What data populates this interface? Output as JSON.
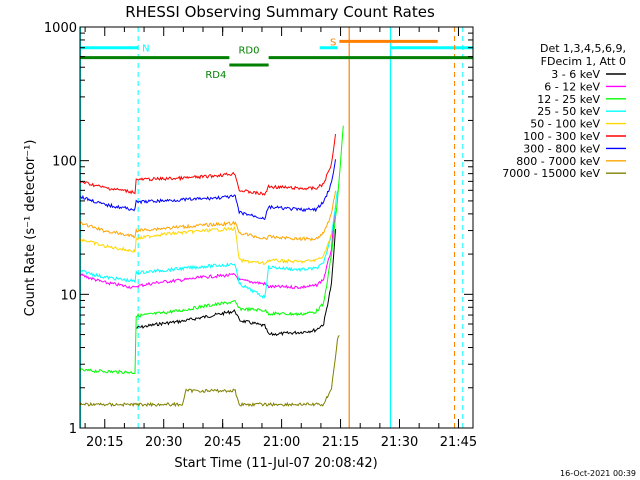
{
  "chart_data": {
    "type": "line",
    "title": "RHESSI Observing Summary Count Rates",
    "xlabel": "Start Time (11-Jul-07 20:08:42)",
    "ylabel": "Count Rate (s⁻¹ detector⁻¹)",
    "x_unit": "minutes after 20:08:42",
    "xlim": [
      0,
      100
    ],
    "x_ticks": [
      {
        "label": "20:15",
        "x": 6.3
      },
      {
        "label": "20:30",
        "x": 21.3
      },
      {
        "label": "20:45",
        "x": 36.3
      },
      {
        "label": "21:00",
        "x": 51.3
      },
      {
        "label": "21:15",
        "x": 66.3
      },
      {
        "label": "21:30",
        "x": 81.3
      },
      {
        "label": "21:45",
        "x": 96.3
      }
    ],
    "y_scale": "log",
    "ylim": [
      1,
      1000
    ],
    "y_ticks": [
      "1",
      "10",
      "100",
      "1000"
    ],
    "legend_header": [
      "Det 1,3,4,5,6,9,",
      "FDecim 1, Att 0"
    ],
    "legend_position": "right",
    "series": [
      {
        "name": "3 - 6 keV",
        "color": "#000000",
        "points": [
          [
            14.3,
            5.6
          ],
          [
            20,
            6
          ],
          [
            26,
            6.3
          ],
          [
            32,
            6.8
          ],
          [
            39.5,
            7.5
          ],
          [
            40.5,
            6.4
          ],
          [
            47,
            5.8
          ],
          [
            48,
            5
          ],
          [
            56,
            5.2
          ],
          [
            60,
            5.4
          ],
          [
            62,
            6
          ],
          [
            64,
            12
          ],
          [
            65,
            30
          ]
        ]
      },
      {
        "name": "6 - 12 keV",
        "color": "#ff00ff",
        "points": [
          [
            0,
            14
          ],
          [
            6,
            12.3
          ],
          [
            14,
            11.2
          ],
          [
            14.3,
            11.5
          ],
          [
            20,
            12.3
          ],
          [
            26,
            12.8
          ],
          [
            32,
            13.5
          ],
          [
            39.5,
            14
          ],
          [
            40.5,
            12.8
          ],
          [
            47,
            12
          ],
          [
            48,
            11.4
          ],
          [
            56,
            11.3
          ],
          [
            60,
            11.6
          ],
          [
            62,
            13
          ],
          [
            64,
            22
          ],
          [
            65,
            45
          ]
        ]
      },
      {
        "name": "12 - 25 keV",
        "color": "#00ff00",
        "points": [
          [
            0,
            2.7
          ],
          [
            14,
            2.6
          ],
          [
            14.3,
            6.9
          ],
          [
            20,
            7.2
          ],
          [
            26,
            7.6
          ],
          [
            32,
            8.2
          ],
          [
            39.5,
            8.8
          ],
          [
            40.5,
            7.8
          ],
          [
            47,
            7.6
          ],
          [
            48,
            7.2
          ],
          [
            56,
            7.1
          ],
          [
            60,
            7.4
          ],
          [
            62,
            8.5
          ],
          [
            64,
            20
          ],
          [
            65.5,
            50
          ],
          [
            67,
            180
          ]
        ]
      },
      {
        "name": "25 - 50 keV",
        "color": "#00ffff",
        "points": [
          [
            0,
            15
          ],
          [
            6,
            13.5
          ],
          [
            14,
            12.5
          ],
          [
            14.3,
            14.5
          ],
          [
            20,
            15
          ],
          [
            26,
            15.6
          ],
          [
            32,
            16.2
          ],
          [
            39.5,
            16.8
          ],
          [
            40.5,
            12
          ],
          [
            47,
            9.5
          ],
          [
            48,
            16
          ],
          [
            56,
            15.3
          ],
          [
            60,
            15.6
          ],
          [
            62,
            17
          ],
          [
            64,
            28
          ],
          [
            65.5,
            60
          ]
        ]
      },
      {
        "name": "50 - 100 keV",
        "color": "#ffd700",
        "points": [
          [
            0,
            26
          ],
          [
            6,
            23
          ],
          [
            14,
            21
          ],
          [
            14.3,
            26
          ],
          [
            20,
            28
          ],
          [
            26,
            29
          ],
          [
            32,
            30
          ],
          [
            39.5,
            31
          ],
          [
            40.5,
            18
          ],
          [
            47,
            17
          ],
          [
            48,
            18
          ],
          [
            56,
            17.5
          ],
          [
            60,
            18
          ],
          [
            62,
            19.5
          ],
          [
            64,
            28
          ]
        ]
      },
      {
        "name": "100 - 300 keV",
        "color": "#ff0000",
        "points": [
          [
            0,
            70
          ],
          [
            6,
            63
          ],
          [
            14,
            58
          ],
          [
            14.3,
            72
          ],
          [
            20,
            73
          ],
          [
            26,
            74
          ],
          [
            32,
            76
          ],
          [
            39.5,
            80
          ],
          [
            40.5,
            60
          ],
          [
            47,
            56
          ],
          [
            48,
            64
          ],
          [
            56,
            62
          ],
          [
            60,
            62
          ],
          [
            62,
            67
          ],
          [
            64,
            95
          ],
          [
            65,
            160
          ]
        ]
      },
      {
        "name": "300 - 800 keV",
        "color": "#0000ff",
        "points": [
          [
            0,
            54
          ],
          [
            6,
            47
          ],
          [
            14,
            43
          ],
          [
            14.3,
            49
          ],
          [
            20,
            50
          ],
          [
            26,
            51
          ],
          [
            32,
            52
          ],
          [
            39.5,
            54
          ],
          [
            40.5,
            41
          ],
          [
            47,
            37
          ],
          [
            48,
            45
          ],
          [
            56,
            43
          ],
          [
            60,
            43
          ],
          [
            62,
            49
          ],
          [
            64,
            68
          ],
          [
            65,
            100
          ]
        ]
      },
      {
        "name": "800 - 7000 keV",
        "color": "#ffa500",
        "points": [
          [
            0,
            34
          ],
          [
            6,
            30
          ],
          [
            14,
            27
          ],
          [
            14.3,
            30
          ],
          [
            20,
            31
          ],
          [
            26,
            32
          ],
          [
            32,
            33
          ],
          [
            39.5,
            34
          ],
          [
            40.5,
            29
          ],
          [
            47,
            26
          ],
          [
            48,
            27
          ],
          [
            56,
            26
          ],
          [
            60,
            26
          ],
          [
            62,
            29
          ],
          [
            64,
            40
          ],
          [
            65,
            60
          ]
        ]
      },
      {
        "name": "7000 - 15000 keV",
        "color": "#808000",
        "points": [
          [
            0,
            1.5
          ],
          [
            14,
            1.5
          ],
          [
            26,
            1.5
          ],
          [
            27,
            1.9
          ],
          [
            39.5,
            1.9
          ],
          [
            40.5,
            1.5
          ],
          [
            48,
            1.5
          ],
          [
            56,
            1.5
          ],
          [
            62,
            1.5
          ],
          [
            64,
            2
          ],
          [
            65.5,
            4.5
          ],
          [
            66,
            5
          ]
        ]
      }
    ],
    "state_bars": [
      {
        "label": "N",
        "color": "#00ffff",
        "level": 700,
        "segments": [
          [
            0,
            14.8
          ],
          [
            61,
            65.5
          ],
          [
            79,
            100
          ]
        ],
        "dashed_at": [
          14.8,
          97.4
        ]
      },
      {
        "label": "S",
        "color": "#ff8000",
        "level": 780,
        "segments": [
          [
            66,
            91
          ]
        ],
        "dashed_at": [
          95.3
        ]
      },
      {
        "label": "RD0",
        "color": "#008000",
        "level": 590,
        "segments": [
          [
            0,
            38
          ],
          [
            48,
            100
          ]
        ]
      },
      {
        "label": "RD4",
        "color": "#008000",
        "level": 520,
        "segments": [
          [
            38,
            48
          ]
        ]
      }
    ],
    "vlines": [
      {
        "x": 0.1,
        "color": "#00ffff"
      },
      {
        "x": 68.5,
        "color": "#ff8000"
      },
      {
        "x": 79,
        "color": "#00ffff"
      }
    ],
    "timestamp": "16-Oct-2021 00:39"
  }
}
